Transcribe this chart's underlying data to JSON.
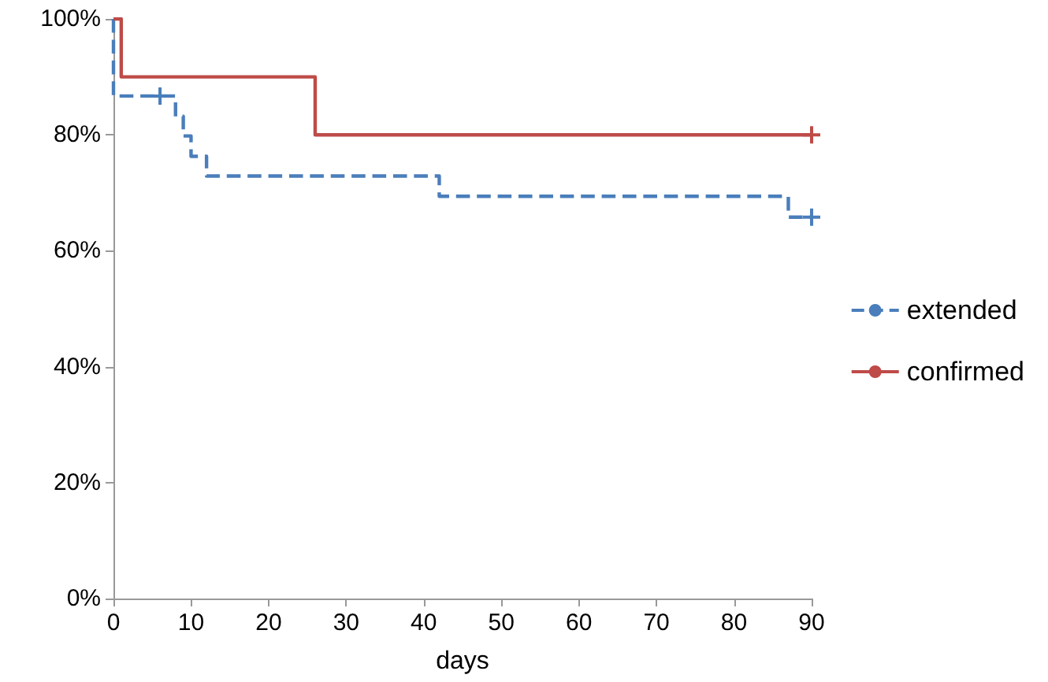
{
  "chart_data": {
    "type": "step",
    "xlabel": "days",
    "xlim": [
      0,
      90
    ],
    "xticks": [
      0,
      10,
      20,
      30,
      40,
      50,
      60,
      70,
      80,
      90
    ],
    "ylim": [
      0,
      100
    ],
    "yticks": [
      {
        "value": 0,
        "label": "0%"
      },
      {
        "value": 20,
        "label": "20%"
      },
      {
        "value": 40,
        "label": "40%"
      },
      {
        "value": 60,
        "label": "60%"
      },
      {
        "value": 80,
        "label": "80%"
      },
      {
        "value": 100,
        "label": "100%"
      }
    ],
    "grid": false,
    "legend": "right",
    "marker": "none",
    "series": [
      {
        "name": "extended",
        "color": "#4a7ebb",
        "line_style": "dashed",
        "x": [
          0,
          0,
          8,
          9,
          10,
          12,
          42,
          87,
          90
        ],
        "values": [
          100,
          86.7,
          83.2,
          79.8,
          76.3,
          72.9,
          69.4,
          65.8,
          65.8
        ]
      },
      {
        "name": "confirmed",
        "color": "#be4b48",
        "line_style": "solid",
        "x": [
          0,
          1,
          26,
          90
        ],
        "values": [
          100,
          90,
          80,
          80
        ]
      },
      {
        "type": "scatter",
        "marker": "cross",
        "color": "#4a7ebb",
        "x": [
          6,
          90
        ],
        "values": [
          86.7,
          65.8
        ]
      },
      {
        "type": "scatter",
        "marker": "cross",
        "color": "#be4b48",
        "x": [
          90
        ],
        "values": [
          80
        ]
      }
    ]
  }
}
